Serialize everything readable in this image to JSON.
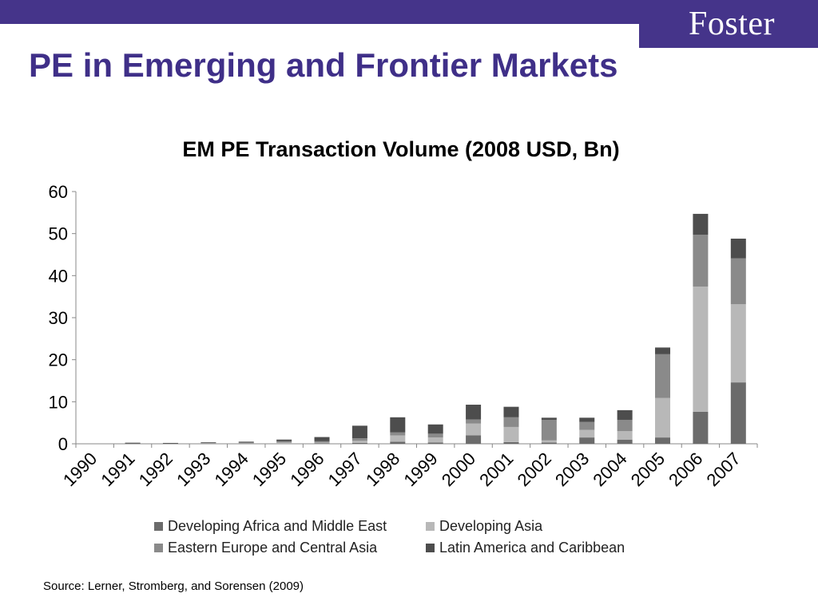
{
  "header": {
    "logo_text": "Foster",
    "brand_color": "#45348a",
    "title": "PE in Emerging and Frontier Markets",
    "title_color": "#3f2f88"
  },
  "source_note": "Source: Lerner, Stromberg, and Sorensen (2009)",
  "chart_data": {
    "type": "bar",
    "stacked": true,
    "title": "EM PE Transaction Volume (2008 USD, Bn)",
    "xlabel": "",
    "ylabel": "",
    "ylim": [
      0,
      60
    ],
    "yticks": [
      0,
      10,
      20,
      30,
      40,
      50,
      60
    ],
    "grid": false,
    "legend_position": "bottom",
    "categories": [
      "1990",
      "1991",
      "1992",
      "1993",
      "1994",
      "1995",
      "1996",
      "1997",
      "1998",
      "1999",
      "2000",
      "2001",
      "2002",
      "2003",
      "2004",
      "2005",
      "2006",
      "2007"
    ],
    "series": [
      {
        "name": "Developing Africa and Middle East",
        "color": "#6b6b6b",
        "values": [
          0,
          0.05,
          0,
          0,
          0,
          0,
          0.1,
          0.2,
          0.5,
          0.3,
          2.0,
          0.4,
          0.3,
          1.5,
          1.0,
          1.5,
          7.6,
          14.6
        ]
      },
      {
        "name": "Developing Asia",
        "color": "#b8b8b8",
        "values": [
          0,
          0,
          0,
          0.1,
          0.1,
          0.3,
          0.2,
          0.5,
          1.5,
          1.2,
          2.8,
          3.6,
          0.5,
          1.8,
          2.0,
          9.4,
          29.8,
          18.6
        ]
      },
      {
        "name": "Eastern Europe and Central Asia",
        "color": "#8a8a8a",
        "values": [
          0,
          0.05,
          0.05,
          0.1,
          0.2,
          0.3,
          0.3,
          0.6,
          0.7,
          0.9,
          1.0,
          2.3,
          4.9,
          1.9,
          2.7,
          10.4,
          12.3,
          10.9
        ]
      },
      {
        "name": "Latin America and Caribbean",
        "color": "#4d4d4d",
        "values": [
          0,
          0.1,
          0.05,
          0.1,
          0.2,
          0.4,
          1.0,
          3.0,
          3.6,
          2.2,
          3.5,
          2.5,
          0.5,
          1.0,
          2.3,
          1.6,
          5.0,
          4.7
        ]
      }
    ]
  }
}
